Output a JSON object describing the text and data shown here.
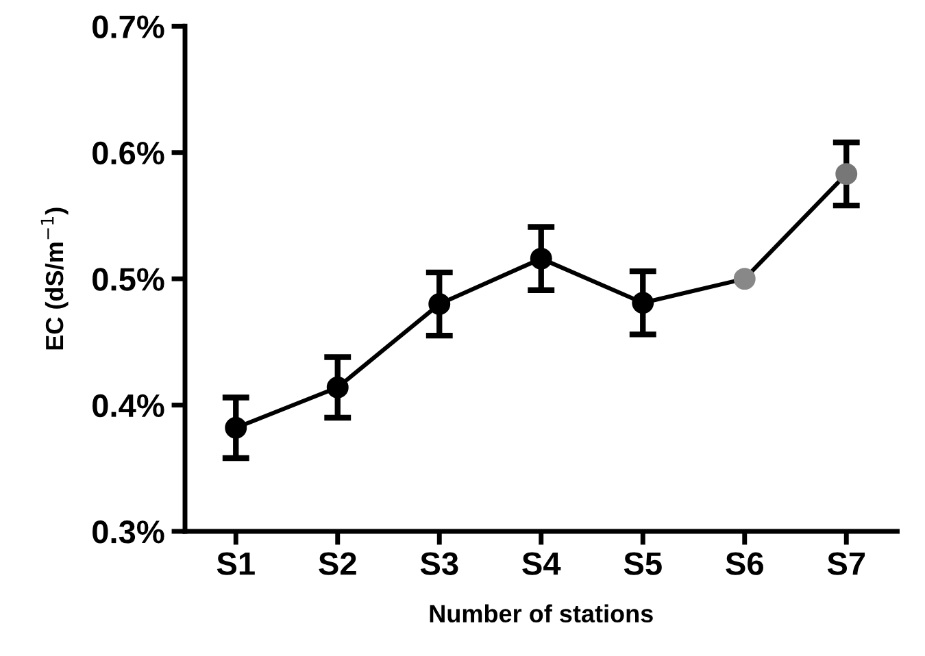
{
  "chart_data": {
    "type": "line",
    "xlabel": "Number of stations",
    "ylabel": "EC (dS/m$^{−1}$)",
    "categories": [
      "S1",
      "S2",
      "S3",
      "S4",
      "S5",
      "S6",
      "S7"
    ],
    "series": [
      {
        "color": "#000000",
        "colors": [
          "#000000",
          "#000000",
          "#000000",
          "#000000",
          "#000000",
          "#888888",
          "#777777"
        ],
        "values": [
          0.382,
          0.414,
          0.48,
          0.516,
          0.481,
          0.5,
          0.583
        ],
        "errors": [
          0.024,
          0.024,
          0.025,
          0.025,
          0.025,
          null,
          0.025
        ]
      }
    ],
    "ylim": [
      0.3,
      0.7
    ],
    "yticks": [
      {
        "value": 0.3,
        "label": "0.3%"
      },
      {
        "value": 0.4,
        "label": "0.4%"
      },
      {
        "value": 0.5,
        "label": "0.5%"
      },
      {
        "value": 0.6,
        "label": "0.6%"
      },
      {
        "value": 0.7,
        "label": "0.7%"
      }
    ],
    "marker": "circle",
    "line_style": "solid",
    "grid": false,
    "legend": false
  }
}
